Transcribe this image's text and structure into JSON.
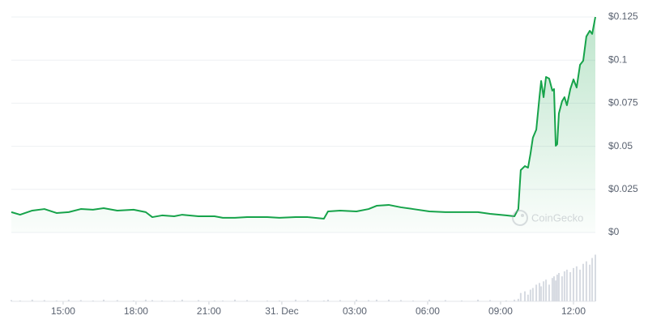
{
  "chart_data": {
    "type": "line",
    "x": [
      12.87,
      13.23,
      13.73,
      14.23,
      14.73,
      15.23,
      15.73,
      16.23,
      16.67,
      17.23,
      17.9,
      18.4,
      18.67,
      19.07,
      19.57,
      19.9,
      20.57,
      21.23,
      21.57,
      22.07,
      22.57,
      23.4,
      23.9,
      24.57,
      25.07,
      25.73,
      25.9,
      26.4,
      27.07,
      27.57,
      27.9,
      28.4,
      28.9,
      29.4,
      30.07,
      30.73,
      31.4,
      32.07,
      32.57,
      33.23,
      33.57,
      33.73,
      33.83,
      34.0,
      34.13,
      34.23,
      34.33,
      34.47,
      34.6,
      34.67,
      34.77,
      34.87,
      35.0,
      35.13,
      35.2,
      35.27,
      35.33,
      35.4,
      35.53,
      35.63,
      35.73,
      35.87,
      36.0,
      36.13,
      36.27,
      36.4,
      36.53,
      36.67,
      36.77,
      36.9
    ],
    "series": [
      {
        "color": "#16a34a",
        "values": [
          0.0118,
          0.0103,
          0.0127,
          0.0136,
          0.0113,
          0.0118,
          0.0136,
          0.0132,
          0.0141,
          0.0127,
          0.0132,
          0.0118,
          0.0089,
          0.0099,
          0.0094,
          0.0103,
          0.0094,
          0.0094,
          0.0085,
          0.0085,
          0.0089,
          0.0089,
          0.0085,
          0.0089,
          0.0089,
          0.008,
          0.0122,
          0.0127,
          0.0122,
          0.0136,
          0.0155,
          0.016,
          0.0146,
          0.0136,
          0.0122,
          0.0118,
          0.0118,
          0.0118,
          0.0108,
          0.0099,
          0.0094,
          0.0136,
          0.0362,
          0.0385,
          0.0376,
          0.0456,
          0.055,
          0.0597,
          0.0785,
          0.0879,
          0.0785,
          0.0902,
          0.0893,
          0.0823,
          0.0832,
          0.0503,
          0.0512,
          0.0691,
          0.0761,
          0.0785,
          0.0738,
          0.0832,
          0.0888,
          0.0841,
          0.0973,
          0.0996,
          0.1137,
          0.117,
          0.1152,
          0.125
        ]
      }
    ],
    "xlim": [
      12.87,
      36.9
    ],
    "xticks": [
      {
        "value": 15,
        "label": "15:00"
      },
      {
        "value": 18,
        "label": "18:00"
      },
      {
        "value": 21,
        "label": "21:00"
      },
      {
        "value": 24,
        "label": "31. Dec"
      },
      {
        "value": 27,
        "label": "03:00"
      },
      {
        "value": 30,
        "label": "06:00"
      },
      {
        "value": 33,
        "label": "09:00"
      },
      {
        "value": 36,
        "label": "12:00"
      }
    ],
    "ylim": [
      0,
      0.125
    ],
    "yticks": [
      {
        "value": 0,
        "label": "$0"
      },
      {
        "value": 0.025,
        "label": "$0.025"
      },
      {
        "value": 0.05,
        "label": "$0.05"
      },
      {
        "value": 0.075,
        "label": "$0.075"
      },
      {
        "value": 0.1,
        "label": "$0.1"
      },
      {
        "value": 0.125,
        "label": "$0.125"
      }
    ],
    "grid": true,
    "y_axis_side": "right",
    "watermark": "CoinGecko",
    "volume": {
      "color": "#d7dbe2",
      "ylim": [
        0,
        70
      ],
      "values": [
        1.5,
        1,
        2,
        1.5,
        1,
        2,
        1.5,
        1,
        2,
        1.5,
        1,
        2,
        1.5,
        1,
        1,
        2,
        1.5,
        1,
        1,
        2,
        1.5,
        1,
        1,
        2,
        1.5,
        1,
        2,
        1.5,
        2,
        1.5,
        2,
        2,
        1.5,
        1,
        2,
        1.5,
        1,
        2,
        1.5,
        1,
        2,
        3,
        10,
        12,
        8,
        14,
        16,
        20,
        22,
        18,
        24,
        26,
        20,
        28,
        30,
        25,
        32,
        34,
        30,
        36,
        38,
        35,
        40,
        42,
        38,
        45,
        48,
        44,
        52,
        56
      ]
    }
  }
}
